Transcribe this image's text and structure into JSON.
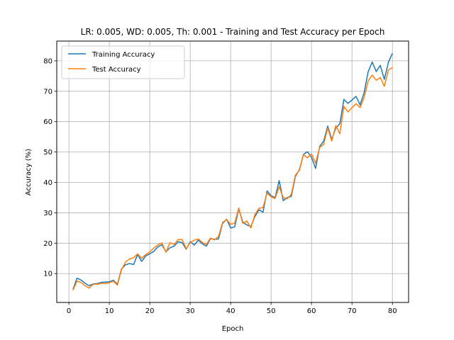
{
  "chart_data": {
    "type": "line",
    "title": "LR: 0.005, WD: 0.005, Th: 0.001 - Training and Test Accuracy per Epoch",
    "xlabel": "Epoch",
    "ylabel": "Accuracy (%)",
    "xlim": [
      -3,
      84
    ],
    "ylim": [
      0.5,
      86.5
    ],
    "xticks": [
      0,
      10,
      20,
      30,
      40,
      50,
      60,
      70,
      80
    ],
    "yticks": [
      10,
      20,
      30,
      40,
      50,
      60,
      70,
      80
    ],
    "grid": true,
    "legend_position": "top-left",
    "x": [
      1,
      2,
      3,
      4,
      5,
      6,
      7,
      8,
      9,
      10,
      11,
      12,
      13,
      14,
      15,
      16,
      17,
      18,
      19,
      20,
      21,
      22,
      23,
      24,
      25,
      26,
      27,
      28,
      29,
      30,
      31,
      32,
      33,
      34,
      35,
      36,
      37,
      38,
      39,
      40,
      41,
      42,
      43,
      44,
      45,
      46,
      47,
      48,
      49,
      50,
      51,
      52,
      53,
      54,
      55,
      56,
      57,
      58,
      59,
      60,
      61,
      62,
      63,
      64,
      65,
      66,
      67,
      68,
      69,
      70,
      71,
      72,
      73,
      74,
      75,
      76,
      77,
      78,
      79,
      80
    ],
    "series": [
      {
        "name": "Training Accuracy",
        "color": "#1f77b4",
        "values": [
          4.7,
          8.5,
          7.9,
          6.8,
          6.0,
          6.6,
          6.7,
          7.1,
          7.2,
          7.3,
          7.8,
          6.5,
          11.5,
          12.9,
          13.3,
          13.0,
          16.3,
          14.0,
          15.8,
          16.5,
          17.3,
          18.8,
          19.5,
          17.2,
          18.5,
          19.0,
          20.5,
          20.2,
          18.0,
          20.5,
          19.4,
          21.0,
          19.8,
          19.0,
          21.5,
          21.3,
          21.4,
          26.5,
          27.9,
          25.0,
          25.4,
          31.3,
          27.0,
          26.0,
          25.5,
          28.8,
          31.0,
          30.2,
          37.2,
          35.6,
          35.0,
          40.6,
          34.0,
          35.0,
          35.4,
          42.0,
          44.2,
          49.2,
          50.1,
          48.2,
          44.6,
          51.8,
          53.6,
          58.5,
          54.1,
          57.9,
          59.3,
          67.3,
          66.0,
          67.1,
          68.3,
          65.5,
          69.5,
          76.4,
          79.6,
          76.5,
          78.5,
          73.9,
          79.5,
          82.5
        ]
      },
      {
        "name": "Test Accuracy",
        "color": "#ff7f0e",
        "values": [
          4.5,
          7.5,
          7.1,
          6.0,
          5.2,
          6.5,
          6.5,
          6.8,
          6.7,
          7.0,
          7.5,
          6.2,
          11.2,
          13.8,
          14.8,
          15.2,
          16.5,
          15.0,
          16.3,
          17.1,
          18.4,
          19.4,
          20.1,
          17.0,
          20.2,
          19.6,
          21.2,
          21.2,
          18.2,
          20.2,
          21.0,
          21.4,
          20.2,
          19.6,
          21.7,
          21.1,
          22.2,
          26.8,
          27.8,
          26.2,
          26.6,
          31.6,
          26.5,
          27.3,
          25.0,
          29.4,
          31.5,
          31.7,
          36.5,
          35.3,
          34.7,
          38.6,
          35.0,
          34.6,
          36.1,
          42.4,
          44.0,
          49.1,
          48.1,
          49.4,
          46.3,
          51.5,
          52.5,
          57.9,
          53.6,
          58.7,
          56.0,
          65.0,
          63.2,
          64.6,
          65.9,
          64.6,
          68.0,
          73.4,
          75.3,
          73.6,
          74.5,
          71.6,
          77.0,
          77.8
        ]
      }
    ]
  }
}
